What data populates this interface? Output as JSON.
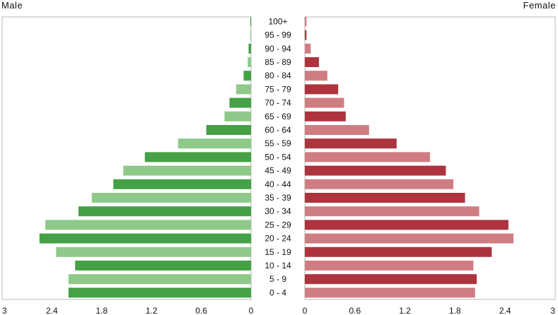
{
  "chart_data": {
    "type": "bar",
    "orientation": "horizontal",
    "subtype": "population-pyramid",
    "left_title": "Male",
    "right_title": "Female",
    "categories": [
      "0 - 4",
      "5 - 9",
      "10 - 14",
      "15 - 19",
      "20 - 24",
      "25 - 29",
      "30 - 34",
      "35 - 39",
      "40 - 44",
      "45 - 49",
      "50 - 54",
      "55 - 59",
      "60 - 64",
      "65 - 69",
      "70 - 74",
      "75 - 79",
      "80 - 84",
      "85 - 89",
      "90 - 94",
      "95 - 99",
      "100+"
    ],
    "series": [
      {
        "name": "Male",
        "side": "left",
        "color_dark": "#46a046",
        "color_light": "#8fc98a",
        "values": [
          2.2,
          2.2,
          2.12,
          2.35,
          2.55,
          2.48,
          2.08,
          1.92,
          1.66,
          1.54,
          1.28,
          0.88,
          0.54,
          0.32,
          0.26,
          0.18,
          0.09,
          0.04,
          0.03,
          0.01,
          0.01
        ]
      },
      {
        "name": "Female",
        "side": "right",
        "color_dark": "#ad343e",
        "color_light": "#cf7d82",
        "values": [
          2.04,
          2.06,
          2.02,
          2.24,
          2.5,
          2.44,
          2.09,
          1.92,
          1.78,
          1.69,
          1.5,
          1.1,
          0.77,
          0.49,
          0.47,
          0.4,
          0.27,
          0.17,
          0.07,
          0.02,
          0.02
        ]
      }
    ],
    "left_axis": {
      "range": [
        3,
        0
      ],
      "ticks": [
        "3",
        "2.4",
        "1.8",
        "1.2",
        "0.6",
        "0"
      ]
    },
    "right_axis": {
      "range": [
        0,
        3
      ],
      "ticks": [
        "0",
        "0.6",
        "1.2",
        "1.8",
        "2.4",
        "3"
      ]
    },
    "grid": false,
    "legend": "none"
  }
}
